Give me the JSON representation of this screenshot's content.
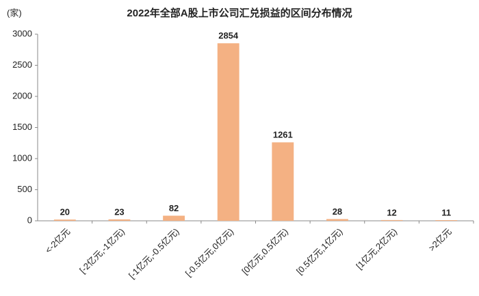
{
  "chart_data": {
    "type": "bar",
    "title": "2022年全部A股上市公司汇兑损益的区间分布情况",
    "y_label": "(家)",
    "categories": [
      "<-2亿元",
      "[-2亿元,-1亿元)",
      "[-1亿元,-0.5亿元)",
      "[-0.5亿元,0亿元)",
      "[0亿元,0.5亿元)",
      "[0.5亿元,1亿元)",
      "[1亿元,2亿元)",
      ">2亿元"
    ],
    "values": [
      20,
      23,
      82,
      2854,
      1261,
      28,
      12,
      11
    ],
    "color": "#f4b183",
    "ylim": [
      0,
      3000
    ],
    "yticks": [
      0,
      500,
      1000,
      1500,
      2000,
      2500,
      3000
    ],
    "grid": false
  }
}
